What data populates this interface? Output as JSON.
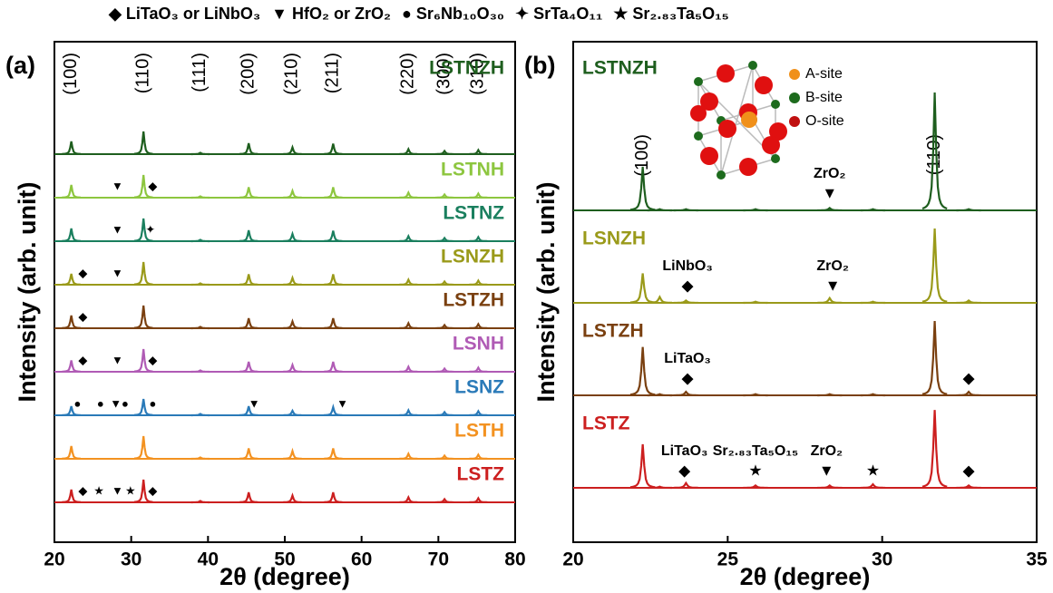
{
  "legend": [
    {
      "symbol": "◆",
      "label": "LiTaO₃ or LiNbO₃"
    },
    {
      "symbol": "▼",
      "label": "HfO₂ or ZrO₂"
    },
    {
      "symbol": "●",
      "label": "Sr₆Nb₁₀O₃₀"
    },
    {
      "symbol": "✦",
      "label": "SrTa₄O₁₁"
    },
    {
      "symbol": "★",
      "label": "Sr₂.₈₃Ta₅O₁₅"
    }
  ],
  "inset": {
    "legend": [
      "A-site",
      "B-site",
      "O-site"
    ]
  },
  "chart_data": [
    {
      "type": "line",
      "panel": "(a)",
      "xlabel": "2θ (degree)",
      "ylabel": "Intensity (arb. unit)",
      "xlim": [
        20,
        80
      ],
      "xticks": [
        20,
        30,
        40,
        50,
        60,
        70,
        80
      ],
      "x": [
        22.2,
        31.6,
        39.0,
        45.3,
        51.0,
        56.3,
        66.1,
        70.8,
        75.2
      ],
      "peak_labels": [
        "(100)",
        "(110)",
        "(111)",
        "(200)",
        "(210)",
        "(211)",
        "(220)",
        "(300)",
        "(310)"
      ],
      "series": [
        {
          "name": "LSTNZH",
          "color": "#1e5e1e",
          "values": [
            56,
            100,
            6,
            48,
            30,
            46,
            22,
            14,
            18
          ],
          "markers": []
        },
        {
          "name": "LSTNH",
          "color": "#8dc63f",
          "values": [
            56,
            100,
            6,
            46,
            30,
            46,
            22,
            14,
            18
          ],
          "markers": [
            {
              "x": 28.2,
              "symbol": "▼"
            },
            {
              "x": 32.8,
              "symbol": "◆"
            }
          ]
        },
        {
          "name": "LSTNZ",
          "color": "#1a7f5e",
          "values": [
            56,
            100,
            6,
            48,
            32,
            46,
            22,
            14,
            18
          ],
          "markers": [
            {
              "x": 28.2,
              "symbol": "▼"
            },
            {
              "x": 32.5,
              "symbol": "✦"
            }
          ]
        },
        {
          "name": "LSNZH",
          "color": "#9a9a1a",
          "values": [
            48,
            100,
            6,
            46,
            30,
            46,
            22,
            14,
            18
          ],
          "markers": [
            {
              "x": 23.7,
              "symbol": "◆"
            },
            {
              "x": 28.2,
              "symbol": "▼"
            }
          ]
        },
        {
          "name": "LSTZH",
          "color": "#7a4010",
          "values": [
            56,
            100,
            6,
            44,
            30,
            44,
            22,
            14,
            18
          ],
          "markers": [
            {
              "x": 23.7,
              "symbol": "◆"
            }
          ]
        },
        {
          "name": "LSNH",
          "color": "#b05bb5",
          "values": [
            50,
            100,
            6,
            44,
            30,
            44,
            22,
            14,
            18
          ],
          "markers": [
            {
              "x": 23.7,
              "symbol": "◆"
            },
            {
              "x": 28.2,
              "symbol": "▼"
            },
            {
              "x": 32.8,
              "symbol": "◆"
            }
          ]
        },
        {
          "name": "LSNZ",
          "color": "#2a7ab8",
          "values": [
            40,
            72,
            6,
            40,
            20,
            36,
            22,
            14,
            18
          ],
          "markers": [
            {
              "x": 23.0,
              "symbol": "●"
            },
            {
              "x": 26.0,
              "symbol": "●"
            },
            {
              "x": 28.0,
              "symbol": "▼"
            },
            {
              "x": 29.2,
              "symbol": "●"
            },
            {
              "x": 32.8,
              "symbol": "●"
            },
            {
              "x": 46.0,
              "symbol": "▼"
            },
            {
              "x": 57.5,
              "symbol": "▼"
            }
          ]
        },
        {
          "name": "LSTH",
          "color": "#f39221",
          "values": [
            56,
            100,
            6,
            46,
            34,
            46,
            22,
            14,
            18
          ],
          "markers": []
        },
        {
          "name": "LSTZ",
          "color": "#cc1f1f",
          "values": [
            56,
            100,
            6,
            44,
            30,
            44,
            22,
            14,
            18
          ],
          "markers": [
            {
              "x": 23.7,
              "symbol": "◆"
            },
            {
              "x": 25.8,
              "symbol": "★"
            },
            {
              "x": 28.2,
              "symbol": "▼"
            },
            {
              "x": 29.9,
              "symbol": "★"
            },
            {
              "x": 32.8,
              "symbol": "◆"
            }
          ]
        }
      ]
    },
    {
      "type": "line",
      "panel": "(b)",
      "xlabel": "2θ (degree)",
      "ylabel": "Intensity (arb. unit)",
      "xlim": [
        20,
        35
      ],
      "xticks": [
        20,
        25,
        30,
        35
      ],
      "x": [
        22.25,
        22.8,
        23.65,
        25.9,
        28.3,
        29.7,
        31.7,
        32.8
      ],
      "peak_labels": [
        "(100)",
        null,
        null,
        null,
        null,
        null,
        "(110)",
        null
      ],
      "series": [
        {
          "name": "LSTNZH",
          "color": "#1e5e1e",
          "values": [
            37,
            1,
            1,
            1,
            2,
            1,
            100,
            1
          ],
          "markers": [
            {
              "x": 28.3,
              "symbol": "▼",
              "label": "ZrO₂"
            }
          ]
        },
        {
          "name": "LSNZH",
          "color": "#9a9a1a",
          "values": [
            25,
            5,
            2,
            1,
            4,
            1,
            63,
            2
          ],
          "markers": [
            {
              "x": 23.7,
              "symbol": "◆",
              "label": "LiNbO₃"
            },
            {
              "x": 28.4,
              "symbol": "▼",
              "label": "ZrO₂"
            }
          ]
        },
        {
          "name": "LSTZH",
          "color": "#7a4010",
          "values": [
            41,
            1,
            3,
            1,
            1,
            1,
            63,
            3
          ],
          "markers": [
            {
              "x": 23.7,
              "symbol": "◆",
              "label": "LiTaO₃"
            },
            {
              "x": 32.8,
              "symbol": "◆"
            }
          ]
        },
        {
          "name": "LSTZ",
          "color": "#cc1f1f",
          "values": [
            37,
            1,
            4,
            2,
            2,
            3,
            66,
            2
          ],
          "markers": [
            {
              "x": 23.6,
              "symbol": "◆",
              "label": "LiTaO₃"
            },
            {
              "x": 25.9,
              "symbol": "★",
              "label": "Sr₂.₈₃Ta₅O₁₅"
            },
            {
              "x": 28.2,
              "symbol": "▼",
              "label": "ZrO₂"
            },
            {
              "x": 29.7,
              "symbol": "★"
            },
            {
              "x": 32.8,
              "symbol": "◆"
            }
          ]
        }
      ]
    }
  ]
}
